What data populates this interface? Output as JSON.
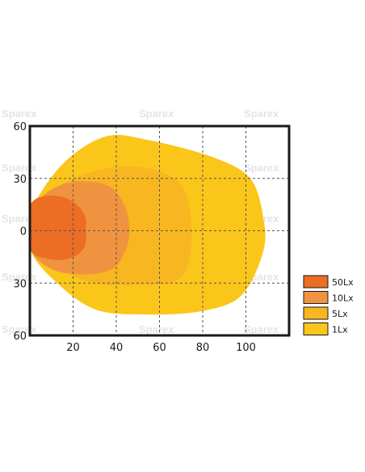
{
  "chart_data": {
    "type": "area",
    "chart_kind": "light-distribution isolux plot",
    "x_ticks": [
      20,
      40,
      60,
      80,
      100
    ],
    "y_ticks_labels": [
      "60",
      "30",
      "0",
      "30",
      "60"
    ],
    "y_ticks_values": [
      60,
      30,
      0,
      -30,
      -60
    ],
    "xlim": [
      0,
      120
    ],
    "ylim": [
      -60,
      60
    ],
    "grid": true,
    "grid_style": "dashed",
    "legend_position": "right",
    "watermark": "Sparex",
    "series": [
      {
        "name": "1Lx",
        "color": "#fbc61a",
        "contour": [
          [
            0,
            -10
          ],
          [
            10,
            -27
          ],
          [
            30,
            -45
          ],
          [
            55,
            -48
          ],
          [
            80,
            -46
          ],
          [
            98,
            -37
          ],
          [
            108,
            -12
          ],
          [
            108,
            8
          ],
          [
            102,
            30
          ],
          [
            85,
            42
          ],
          [
            55,
            52
          ],
          [
            35,
            54
          ],
          [
            15,
            38
          ],
          [
            0,
            10
          ]
        ]
      },
      {
        "name": "5Lx",
        "color": "#f8b621",
        "contour": [
          [
            0,
            -8
          ],
          [
            10,
            -20
          ],
          [
            30,
            -30
          ],
          [
            50,
            -31
          ],
          [
            67,
            -29
          ],
          [
            74,
            -16
          ],
          [
            74,
            12
          ],
          [
            67,
            30
          ],
          [
            45,
            37
          ],
          [
            20,
            30
          ],
          [
            5,
            15
          ],
          [
            0,
            5
          ]
        ]
      },
      {
        "name": "10Lx",
        "color": "#f09340",
        "contour": [
          [
            0,
            -10
          ],
          [
            10,
            -22
          ],
          [
            25,
            -25
          ],
          [
            38,
            -22
          ],
          [
            44,
            -12
          ],
          [
            46,
            0
          ],
          [
            44,
            14
          ],
          [
            36,
            26
          ],
          [
            20,
            28
          ],
          [
            8,
            22
          ],
          [
            0,
            10
          ]
        ]
      },
      {
        "name": "50Lx",
        "color": "#ec6d24",
        "contour": [
          [
            0,
            -10
          ],
          [
            8,
            -16
          ],
          [
            18,
            -16
          ],
          [
            25,
            -10
          ],
          [
            26,
            0
          ],
          [
            25,
            10
          ],
          [
            18,
            18
          ],
          [
            8,
            20
          ],
          [
            0,
            14
          ]
        ]
      }
    ]
  }
}
